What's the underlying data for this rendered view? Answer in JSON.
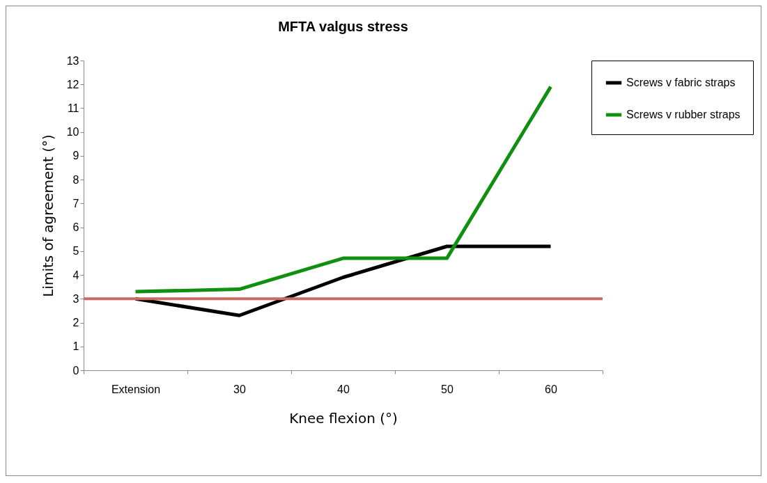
{
  "chart_data": {
    "type": "line",
    "title": "MFTA valgus stress",
    "xlabel": "Knee flexion (°)",
    "ylabel": "Limits of agreement (°)",
    "categories": [
      "Extension",
      "30",
      "40",
      "50",
      "60"
    ],
    "series": [
      {
        "name": "Screws v fabric straps",
        "color": "#000000",
        "values": [
          3.0,
          2.3,
          3.9,
          5.2,
          5.2
        ]
      },
      {
        "name": "Screws v rubber straps",
        "color": "#109010",
        "values": [
          3.3,
          3.4,
          4.7,
          4.7,
          11.9
        ]
      }
    ],
    "ylim": [
      0,
      13
    ],
    "yticks": [
      0,
      1,
      2,
      3,
      4,
      5,
      6,
      7,
      8,
      9,
      10,
      11,
      12,
      13
    ],
    "ref_lines": [
      {
        "axis": "y",
        "value": 3,
        "color": "#cc6a66"
      }
    ],
    "legend": "right"
  }
}
